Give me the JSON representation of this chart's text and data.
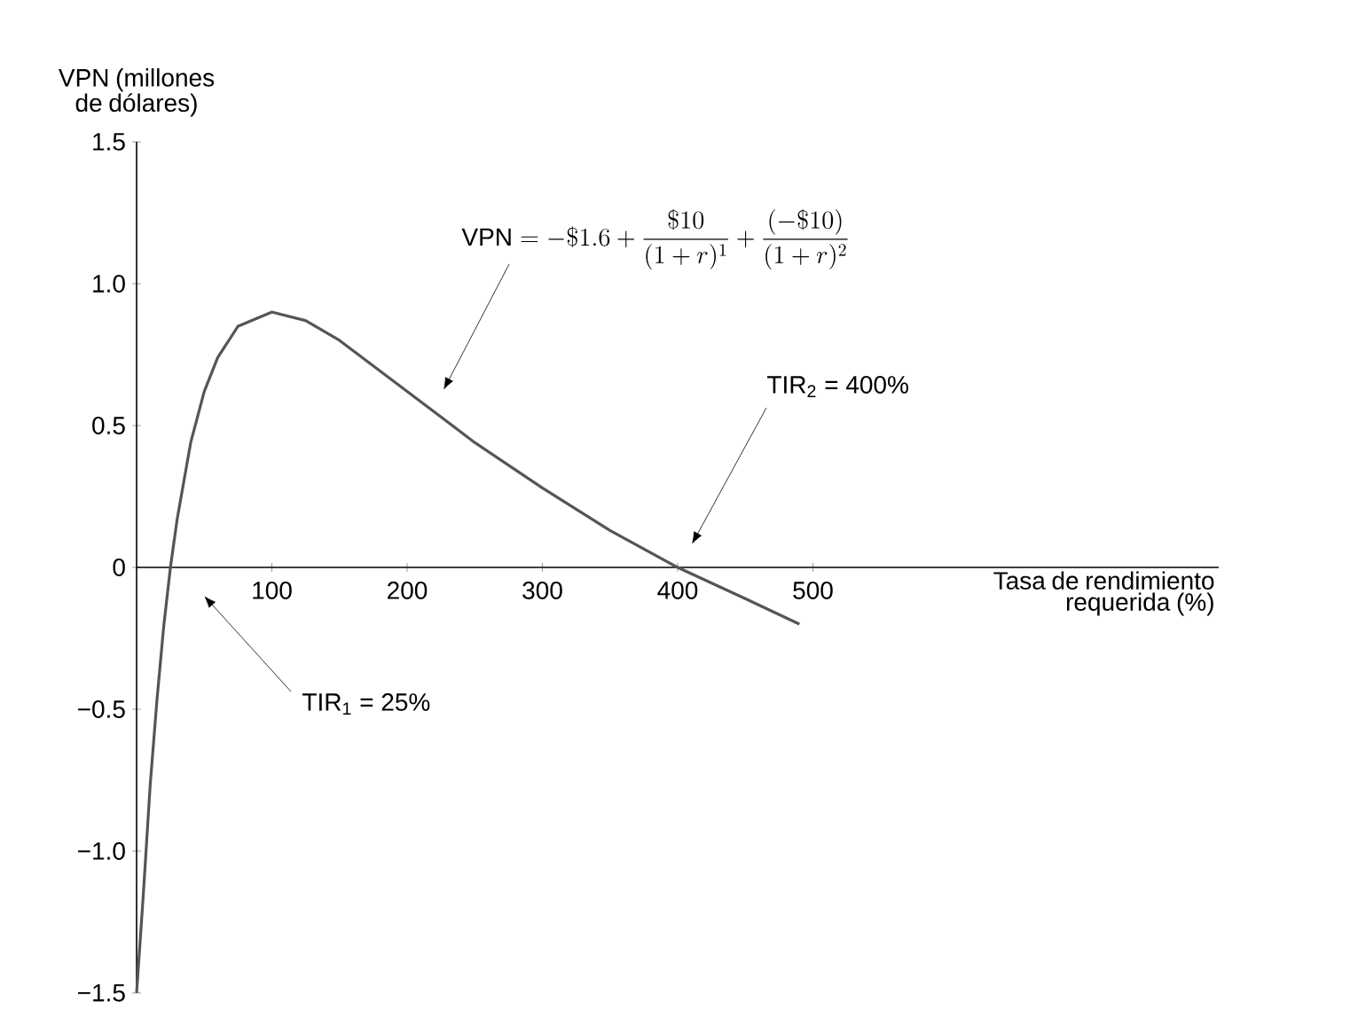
{
  "chart_data": {
    "type": "line",
    "xlabel": "Tasa de rendimiento requerida (%)",
    "ylabel": "VPN (millones de dólares)",
    "xlim": [
      0,
      800
    ],
    "ylim": [
      -1.5,
      1.5
    ],
    "xticks": [
      100,
      200,
      300,
      400,
      500
    ],
    "yticks": [
      {
        "value": -1.5,
        "label": "−1.5"
      },
      {
        "value": -1,
        "label": "−1.0"
      },
      {
        "value": -0.5,
        "label": "−0.5"
      },
      0,
      0.5,
      {
        "value": 1,
        "label": "1.0"
      },
      1.5
    ],
    "marker": "none",
    "line_style": "solid",
    "series": [
      {
        "color": "#555555",
        "x": [
          0,
          5,
          10,
          15,
          20,
          25,
          30,
          40,
          50,
          60,
          75,
          100,
          125,
          150,
          200,
          250,
          300,
          350,
          400,
          450,
          490
        ],
        "values": [
          -1.5,
          -1.15,
          -0.77,
          -0.47,
          -0.21,
          0,
          0.17,
          0.44,
          0.62,
          0.74,
          0.85,
          0.9,
          0.87,
          0.8,
          0.62,
          0.44,
          0.28,
          0.13,
          0,
          -0.11,
          -0.2
        ]
      }
    ],
    "annotations": [
      "\\mathrm{VPN} = -\\$1.6 + \\frac{\\$10}{(1+r)^1} + \\frac{(-\\$10)}{(1+r)^2}",
      "TIR$_{1}$ = 25%",
      "TIR$_{2}$ = 400%"
    ]
  }
}
